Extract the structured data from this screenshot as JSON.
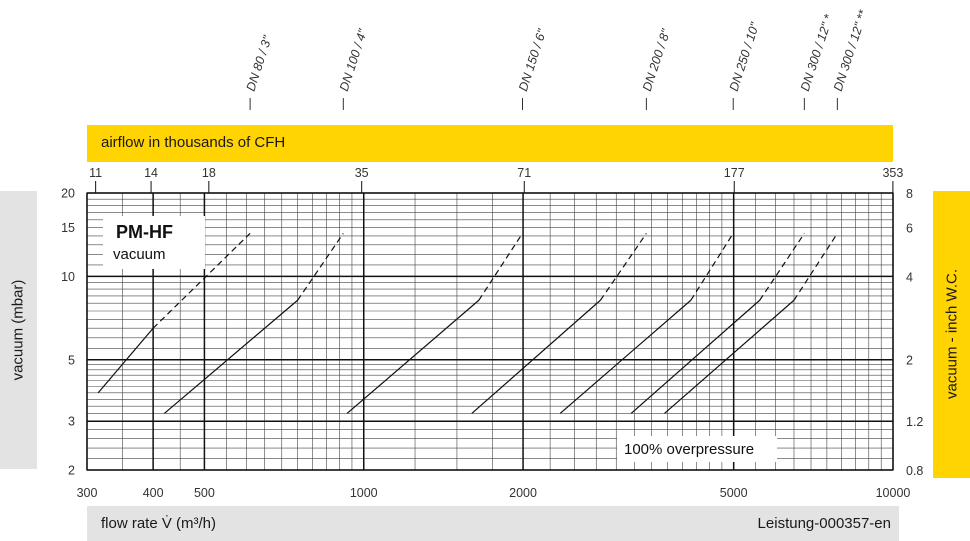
{
  "top_band": {
    "label": "airflow in thousands of CFH"
  },
  "bottom_band": {
    "label": "flow rate V̇ (m³/h)",
    "code": "Leistung-000357-en"
  },
  "left_axis_label": "vacuum (mbar)",
  "right_axis_label": "vacuum - inch W.C.",
  "colors": {
    "accent_yellow": "#ffd400",
    "band_grey": "#e3e3e3"
  },
  "chart_data": {
    "type": "line",
    "title": "PM-HF",
    "subtitle": "vacuum",
    "annotation": "100% overpressure",
    "xlabel": "flow rate V̇ (m³/h)",
    "ylabel": "vacuum (mbar)",
    "x_scale": "log",
    "y_scale": "log",
    "xlim": [
      300,
      10000
    ],
    "ylim": [
      2,
      20
    ],
    "x_ticks": [
      300,
      400,
      500,
      1000,
      2000,
      5000,
      10000
    ],
    "y_ticks": [
      2,
      3,
      5,
      10,
      15,
      20
    ],
    "y2_ticks": [
      "0.8",
      "1.2",
      "2",
      "4",
      "6",
      "8"
    ],
    "x2_ticks": [
      "11",
      "14",
      "18",
      "35",
      "71",
      "177",
      "353"
    ],
    "series": [
      {
        "name": "DN 80 / 3\"",
        "solid": [
          [
            315,
            3.8
          ],
          [
            400,
            6.5
          ]
        ],
        "dashed": [
          [
            400,
            6.5
          ],
          [
            610,
            14.3
          ]
        ]
      },
      {
        "name": "DN 100 / 4\"",
        "solid": [
          [
            420,
            3.2
          ],
          [
            750,
            8.2
          ]
        ],
        "dashed": [
          [
            750,
            8.2
          ],
          [
            915,
            14.3
          ]
        ]
      },
      {
        "name": "DN 150 / 6\"",
        "solid": [
          [
            930,
            3.2
          ],
          [
            1650,
            8.2
          ]
        ],
        "dashed": [
          [
            1650,
            8.2
          ],
          [
            1995,
            14.3
          ]
        ]
      },
      {
        "name": "DN 200 / 8\"",
        "solid": [
          [
            1600,
            3.2
          ],
          [
            2800,
            8.2
          ]
        ],
        "dashed": [
          [
            2800,
            8.2
          ],
          [
            3420,
            14.3
          ]
        ]
      },
      {
        "name": "DN 250 / 10\"",
        "solid": [
          [
            2350,
            3.2
          ],
          [
            4150,
            8.2
          ]
        ],
        "dashed": [
          [
            4150,
            8.2
          ],
          [
            4990,
            14.3
          ]
        ]
      },
      {
        "name": "DN 300 / 12\" *",
        "solid": [
          [
            3200,
            3.2
          ],
          [
            5600,
            8.2
          ]
        ],
        "dashed": [
          [
            5600,
            8.2
          ],
          [
            6800,
            14.3
          ]
        ]
      },
      {
        "name": "DN 300 / 12\" **",
        "solid": [
          [
            3700,
            3.2
          ],
          [
            6500,
            8.2
          ]
        ],
        "dashed": [
          [
            6500,
            8.2
          ],
          [
            7850,
            14.3
          ]
        ]
      }
    ]
  }
}
